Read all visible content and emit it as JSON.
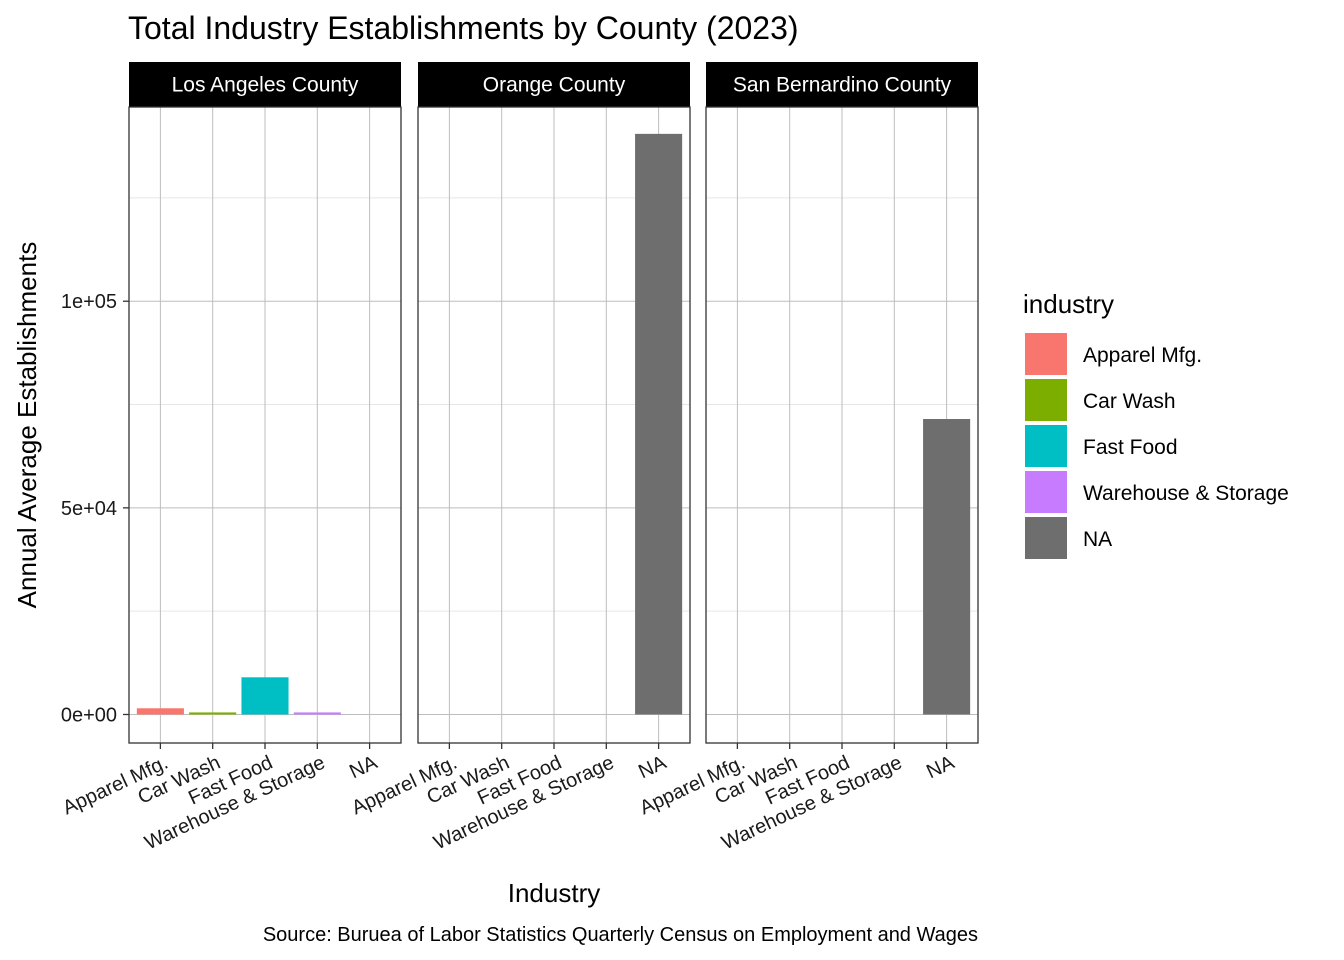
{
  "chart_data": {
    "type": "bar",
    "title": "Total Industry Establishments by County (2023)",
    "xlabel": "Industry",
    "ylabel": "Annual Average Establishments",
    "caption": "Source: Buruea of Labor Statistics Quarterly Census on Employment and Wages",
    "categories": [
      "Apparel Mfg.",
      "Car Wash",
      "Fast Food",
      "Warehouse & Storage",
      "NA"
    ],
    "ylim": [
      -6900,
      147000
    ],
    "y_ticks": [
      0,
      50000,
      100000
    ],
    "y_tick_labels": [
      "0e+00",
      "5e+04",
      "1e+05"
    ],
    "grid": true,
    "legend_position": "right",
    "legend_title": "industry",
    "legend": [
      {
        "name": "Apparel Mfg.",
        "color": "#F8766D"
      },
      {
        "name": "Car Wash",
        "color": "#7CAE00"
      },
      {
        "name": "Fast Food",
        "color": "#00BFC4"
      },
      {
        "name": "Warehouse & Storage",
        "color": "#C77CFF"
      },
      {
        "name": "NA",
        "color": "#6E6E6E"
      }
    ],
    "facets": [
      {
        "name": "Los Angeles County",
        "values": [
          1500,
          500,
          9000,
          500,
          null
        ]
      },
      {
        "name": "Orange County",
        "values": [
          null,
          null,
          null,
          null,
          140500
        ]
      },
      {
        "name": "San Bernardino County",
        "values": [
          null,
          null,
          null,
          null,
          71500
        ]
      }
    ]
  }
}
